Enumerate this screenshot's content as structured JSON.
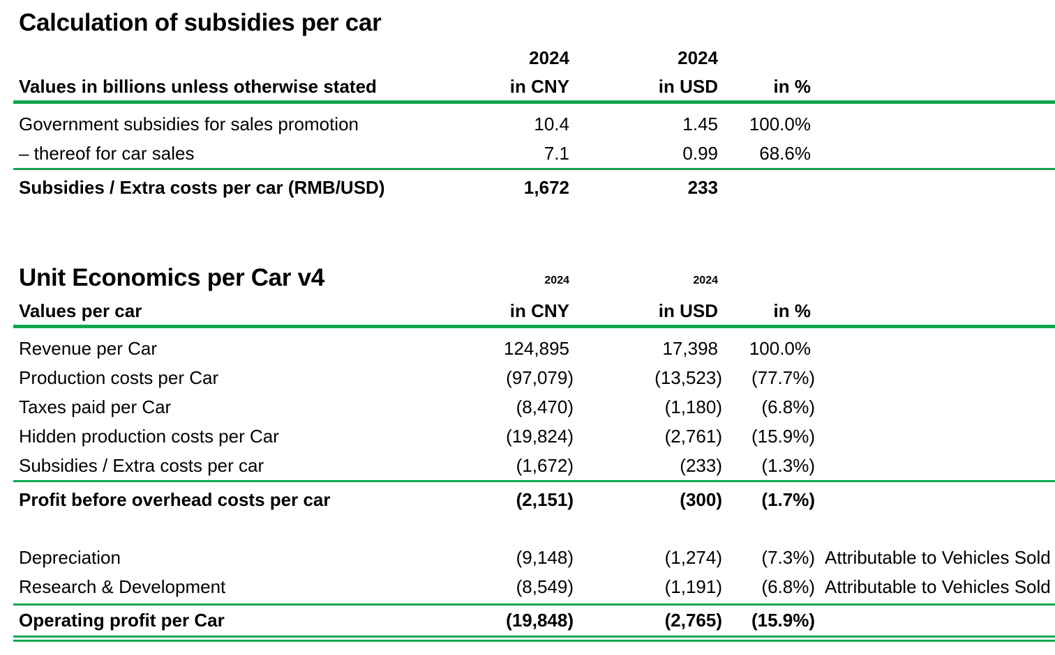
{
  "colors": {
    "accent_green": "#12A550",
    "text": "#000000",
    "background": "#FFFFFF"
  },
  "table1": {
    "title": "Calculation of subsidies per car",
    "col_headers": {
      "year_cny": "2024",
      "year_usd": "2024",
      "cny": "in CNY",
      "usd": "in USD",
      "pct": "in %"
    },
    "row_header": "Values in billions unless otherwise stated",
    "rows": [
      {
        "label": "Government subsidies for sales promotion",
        "cny": "10.4",
        "usd": "1.45",
        "pct": "100.0%"
      },
      {
        "label": "– thereof for car sales",
        "cny": "7.1",
        "usd": "0.99",
        "pct": "68.6%"
      }
    ],
    "total_row": {
      "label": "Subsidies / Extra costs per car (RMB/USD)",
      "cny": "1,672",
      "usd": "233",
      "pct": ""
    }
  },
  "table2": {
    "title": "Unit Economics per Car v4",
    "col_headers": {
      "year_cny": "2024",
      "year_usd": "2024",
      "cny": "in CNY",
      "usd": "in USD",
      "pct": "in %"
    },
    "row_header": "Values per car",
    "rows": [
      {
        "label": "Revenue per Car",
        "cny": "124,895",
        "usd": "17,398",
        "pct": "100.0%",
        "note": ""
      },
      {
        "label": "Production costs per Car",
        "cny": "(97,079)",
        "usd": "(13,523)",
        "pct": "(77.7%)",
        "note": ""
      },
      {
        "label": "Taxes paid per Car",
        "cny": "(8,470)",
        "usd": "(1,180)",
        "pct": "(6.8%)",
        "note": ""
      },
      {
        "label": "Hidden production costs per Car",
        "cny": "(19,824)",
        "usd": "(2,761)",
        "pct": "(15.9%)",
        "note": ""
      },
      {
        "label": "Subsidies / Extra costs per car",
        "cny": "(1,672)",
        "usd": "(233)",
        "pct": "(1.3%)",
        "note": ""
      }
    ],
    "subtotal_row": {
      "label": "Profit before overhead costs per car",
      "cny": "(2,151)",
      "usd": "(300)",
      "pct": "(1.7%)"
    },
    "overhead_rows": [
      {
        "label": "Depreciation",
        "cny": "(9,148)",
        "usd": "(1,274)",
        "pct": "(7.3%)",
        "note": "Attributable to Vehicles Sold"
      },
      {
        "label": "Research & Development",
        "cny": "(8,549)",
        "usd": "(1,191)",
        "pct": "(6.8%)",
        "note": "Attributable to Vehicles Sold"
      }
    ],
    "total_row": {
      "label": "Operating profit per Car",
      "cny": "(19,848)",
      "usd": "(2,765)",
      "pct": "(15.9%)"
    }
  }
}
